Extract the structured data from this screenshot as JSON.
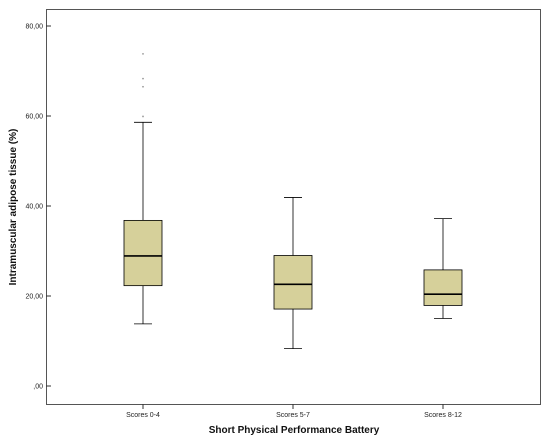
{
  "chart_data": {
    "type": "boxplot",
    "xlabel": "Short Physical Performance Battery",
    "ylabel": "Intramuscular adipose tissue (%)",
    "ylim": [
      0,
      80
    ],
    "yticks": [
      {
        "value": 0,
        "label": ",00"
      },
      {
        "value": 20,
        "label": "20,00"
      },
      {
        "value": 40,
        "label": "40,00"
      },
      {
        "value": 60,
        "label": "60,00"
      },
      {
        "value": 80,
        "label": "80,00"
      }
    ],
    "categories": [
      "Scores 0-4",
      "Scores 5-7",
      "Scores 8-12"
    ],
    "boxes": [
      {
        "category": "Scores 0-4",
        "min": 13.8,
        "q1": 22.3,
        "median": 28.9,
        "q3": 36.8,
        "max": 58.6,
        "outliers": [
          59.9,
          66.5,
          68.3,
          73.8
        ]
      },
      {
        "category": "Scores 5-7",
        "min": 8.3,
        "q1": 17.1,
        "median": 22.6,
        "q3": 29.0,
        "max": 41.9,
        "outliers": []
      },
      {
        "category": "Scores 8-12",
        "min": 15.0,
        "q1": 17.9,
        "median": 20.4,
        "q3": 25.8,
        "max": 37.2,
        "outliers": []
      }
    ],
    "colors": {
      "box_fill": "#d6d09a",
      "stroke": "#000000",
      "frame": "#555555",
      "outlier": "#9a9a9a"
    },
    "grid": false,
    "legend": "none"
  }
}
